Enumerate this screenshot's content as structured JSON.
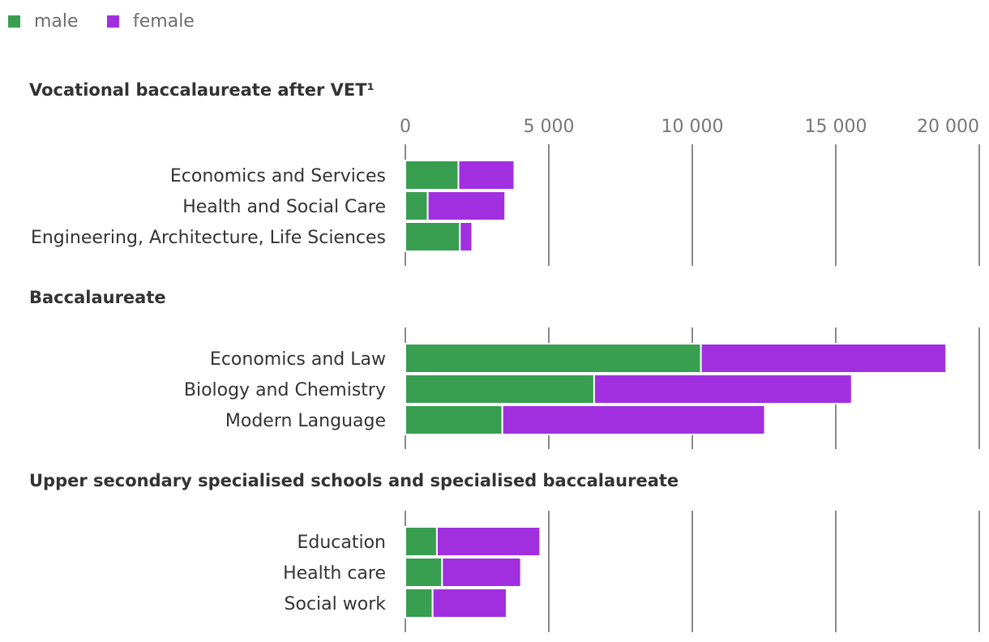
{
  "chart_data": {
    "type": "bar",
    "orientation": "horizontal",
    "stacked": true,
    "legend": [
      {
        "name": "male",
        "color": "#389e50"
      },
      {
        "name": "female",
        "color": "#a12fe0"
      }
    ],
    "xlim": [
      0,
      20000
    ],
    "ticks": [
      {
        "value": 0,
        "label": "0"
      },
      {
        "value": 5000,
        "label": "5 000"
      },
      {
        "value": 10000,
        "label": "10 000"
      },
      {
        "value": 15000,
        "label": "15 000"
      },
      {
        "value": 20000,
        "label": "20 000"
      }
    ],
    "groups": [
      {
        "title": "Vocational baccalaureate after VET¹",
        "categories": [
          "Economics and Services",
          "Health and Social Care",
          "Engineering, Architecture, Life Sciences"
        ],
        "series": [
          {
            "name": "male",
            "values": [
              1850,
              780,
              1900
            ]
          },
          {
            "name": "female",
            "values": [
              1950,
              2700,
              430
            ]
          }
        ]
      },
      {
        "title": "Baccalaureate",
        "categories": [
          "Economics and Law",
          "Biology and Chemistry",
          "Modern Language"
        ],
        "series": [
          {
            "name": "male",
            "values": [
              10300,
              6580,
              3380
            ]
          },
          {
            "name": "female",
            "values": [
              8550,
              8980,
              9150
            ]
          }
        ]
      },
      {
        "title": "Upper secondary specialised schools and specialised baccalaureate",
        "categories": [
          "Education",
          "Health care",
          "Social work"
        ],
        "series": [
          {
            "name": "male",
            "values": [
              1100,
              1280,
              950
            ]
          },
          {
            "name": "female",
            "values": [
              3600,
              2750,
              2580
            ]
          }
        ]
      }
    ]
  }
}
